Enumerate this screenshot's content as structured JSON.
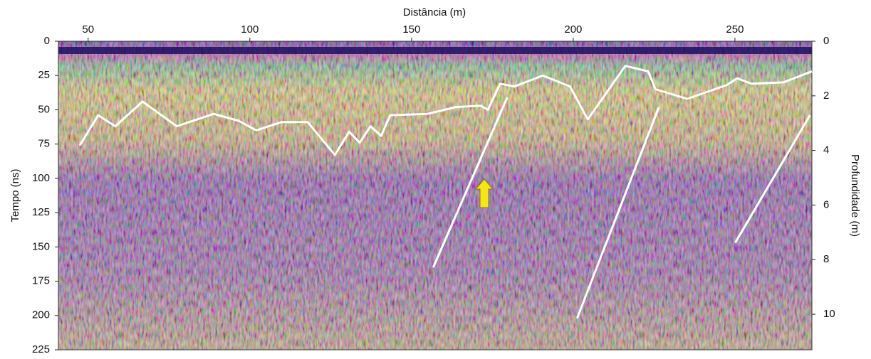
{
  "chart_data": {
    "type": "line",
    "x_label": "Distância (m)",
    "y_label": "Tempo (ns)",
    "y2_label": "Profundidade (m)",
    "xlim": [
      40.8,
      273.8
    ],
    "xticks": [
      50,
      100,
      150,
      200,
      250
    ],
    "ylim": [
      0,
      225
    ],
    "yticks": [
      0,
      25,
      50,
      75,
      100,
      125,
      150,
      175,
      200,
      225
    ],
    "y2lim": [
      0,
      11.3
    ],
    "y2ticks": [
      0,
      2,
      4,
      6,
      8,
      10
    ],
    "series": [
      {
        "color": "#ffffff",
        "x": [
          47.4,
          53.1,
          58.4,
          66.8,
          77.4,
          88.8,
          96.5,
          102,
          109.7,
          117.9,
          126.3,
          130.7,
          134,
          137.3,
          140.6,
          143.4,
          154.9,
          163.7,
          171.4,
          173.6,
          177.4,
          181.8,
          190.6,
          199,
          204.5,
          216.1,
          223.2,
          225.4,
          235.3,
          247.4,
          250.7,
          255.1,
          265,
          273.8
        ],
        "values": [
          76,
          54,
          62,
          44,
          62,
          53,
          58,
          65,
          59,
          59,
          83,
          66,
          74,
          62,
          69,
          54,
          53,
          48,
          47,
          50,
          31,
          33,
          25,
          33,
          57,
          18,
          22,
          35,
          42,
          32,
          27,
          31,
          30,
          22
        ]
      },
      {
        "color": "#ffffff",
        "x": [
          156.7,
          179.6
        ],
        "values": [
          165,
          41
        ]
      },
      {
        "color": "#ffffff",
        "x": [
          201.2,
          226.5
        ],
        "values": [
          202,
          48
        ]
      },
      {
        "color": "#ffffff",
        "x": [
          250.1,
          273.2
        ],
        "values": [
          147,
          54
        ]
      }
    ]
  }
}
